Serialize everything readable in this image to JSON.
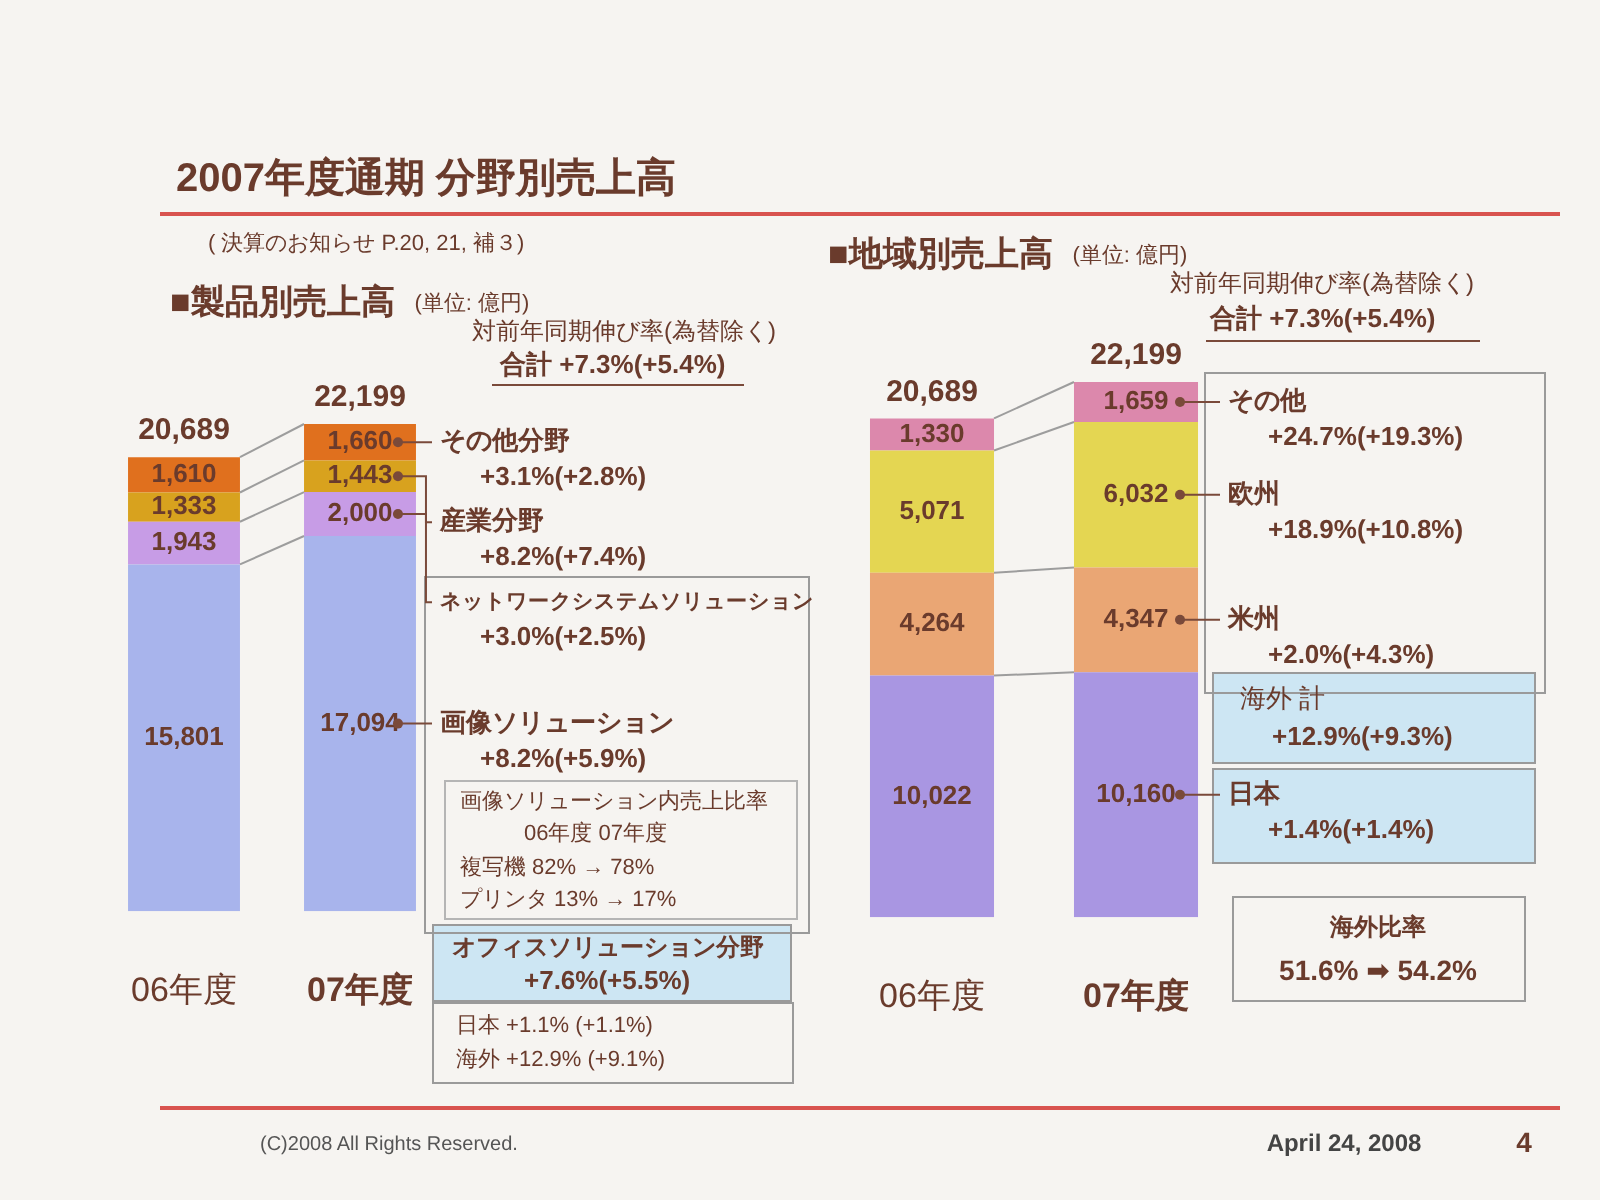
{
  "chart_data": [
    {
      "type": "bar",
      "title": "■製品別売上高",
      "subtitle": "(単位: 億円)",
      "categories": [
        "06年度",
        "07年度"
      ],
      "stacked": true,
      "series": [
        {
          "name": "画像ソリューション",
          "color": "#a8b4ec",
          "values": [
            15801,
            17094
          ],
          "value_labels": [
            "15,801",
            "17,094"
          ]
        },
        {
          "name": "ネットワークシステムソリューション",
          "color": "#c79ce6",
          "values": [
            1943,
            2000
          ],
          "value_labels": [
            "1,943",
            "2,000"
          ]
        },
        {
          "name": "産業分野",
          "color": "#d8a21e",
          "values": [
            1333,
            1443
          ],
          "value_labels": [
            "1,333",
            "1,443"
          ]
        },
        {
          "name": "その他分野",
          "color": "#e0701e",
          "values": [
            1610,
            1660
          ],
          "value_labels": [
            "1,610",
            "1,660"
          ]
        }
      ],
      "totals": [
        "20,689",
        "22,199"
      ],
      "annotations": [
        "2007年度通期 分野別売上高",
        "( 決算のお知らせ P.20, 21, 補３)",
        "対前年同期伸び率(為替除く)",
        "合計 +7.3%(+5.4%)",
        "+3.1%(+2.8%)",
        "+8.2%(+7.4%)",
        "+3.0%(+2.5%)",
        "+8.2%(+5.9%)",
        "画像ソリューション内売上比率",
        "06年度 07年度",
        "複写機 82% → 78%",
        "プリンタ 13% → 17%",
        "オフィスソリューション分野",
        "+7.6%(+5.5%)",
        "日本 +1.1% (+1.1%)",
        "海外 +12.9% (+9.1%)",
        "(C)2008 All Rights Reserved."
      ]
    },
    {
      "type": "bar",
      "title": "■地域別売上高",
      "subtitle": "(単位: 億円)",
      "categories": [
        "06年度",
        "07年度"
      ],
      "stacked": true,
      "series": [
        {
          "name": "日本",
          "color": "#a996e2",
          "values": [
            10022,
            10160
          ],
          "value_labels": [
            "10,022",
            "10,160"
          ]
        },
        {
          "name": "米州",
          "color": "#eaa674",
          "values": [
            4264,
            4347
          ],
          "value_labels": [
            "4,264",
            "4,347"
          ]
        },
        {
          "name": "欧州",
          "color": "#e4d652",
          "values": [
            5071,
            6032
          ],
          "value_labels": [
            "5,071",
            "6,032"
          ]
        },
        {
          "name": "その他",
          "color": "#dc88ac",
          "values": [
            1330,
            1659
          ],
          "value_labels": [
            "1,330",
            "1,659"
          ]
        }
      ],
      "totals": [
        "20,689",
        "22,199"
      ],
      "annotations": [
        "対前年同期伸び率(為替除く)",
        "合計 +7.3%(+5.4%)",
        "+24.7%(+19.3%)",
        "+18.9%(+10.8%)",
        "+2.0%(+4.3%)",
        "+1.4%(+1.4%)",
        "海外 計",
        "+12.9%(+9.3%)",
        "海外比率",
        "51.6% ➡ 54.2%",
        "April 24, 2008",
        "4"
      ]
    }
  ]
}
